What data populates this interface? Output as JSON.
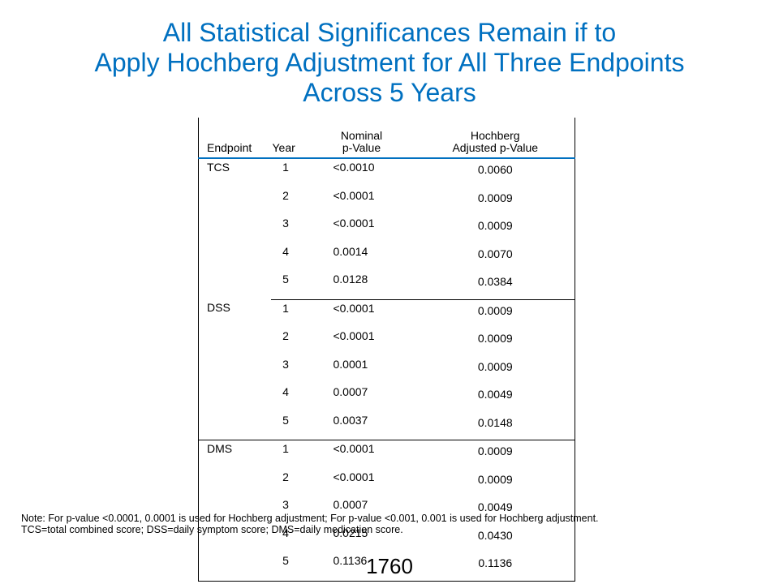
{
  "title": {
    "line1": "All Statistical Significances Remain if to",
    "line2": "Apply Hochberg Adjustment for All Three Endpoints",
    "line3": "Across 5 Years"
  },
  "table": {
    "headers": {
      "endpoint": "Endpoint",
      "year": "Year",
      "nominal_line1": "Nominal",
      "nominal_line2": "p-Value",
      "hochberg_line1": "Hochberg",
      "hochberg_line2": "Adjusted p-Value"
    },
    "groups": [
      {
        "endpoint": "TCS",
        "rows": [
          {
            "year": "1",
            "nominal": "<0.0010",
            "hochberg": "0.0060"
          },
          {
            "year": "2",
            "nominal": "<0.0001",
            "hochberg": "0.0009"
          },
          {
            "year": "3",
            "nominal": "<0.0001",
            "hochberg": "0.0009"
          },
          {
            "year": "4",
            "nominal": "0.0014",
            "hochberg": "0.0070"
          },
          {
            "year": "5",
            "nominal": "0.0128",
            "hochberg": "0.0384"
          }
        ]
      },
      {
        "endpoint": "DSS",
        "rows": [
          {
            "year": "1",
            "nominal": "<0.0001",
            "hochberg": "0.0009"
          },
          {
            "year": "2",
            "nominal": "<0.0001",
            "hochberg": "0.0009"
          },
          {
            "year": "3",
            "nominal": "0.0001",
            "hochberg": "0.0009"
          },
          {
            "year": "4",
            "nominal": "0.0007",
            "hochberg": "0.0049"
          },
          {
            "year": "5",
            "nominal": "0.0037",
            "hochberg": "0.0148"
          }
        ]
      },
      {
        "endpoint": "DMS",
        "rows": [
          {
            "year": "1",
            "nominal": "<0.0001",
            "hochberg": "0.0009"
          },
          {
            "year": "2",
            "nominal": "<0.0001",
            "hochberg": "0.0009"
          },
          {
            "year": "3",
            "nominal": "0.0007",
            "hochberg": "0.0049"
          },
          {
            "year": "4",
            "nominal": "0.0215",
            "hochberg": "0.0430"
          },
          {
            "year": "5",
            "nominal": "0.1136",
            "hochberg": "0.1136"
          }
        ]
      }
    ]
  },
  "note": {
    "line1": "Note: For p-value <0.0001, 0.0001 is used for Hochberg adjustment; For p-value <0.001, 0.001 is used for Hochberg adjustment.",
    "line2": "TCS=total combined score; DSS=daily symptom score; DMS=daily medication score."
  },
  "page_number": "1760",
  "colors": {
    "title": "#0070c0",
    "header_rule": "#0070c0",
    "text": "#000000"
  }
}
